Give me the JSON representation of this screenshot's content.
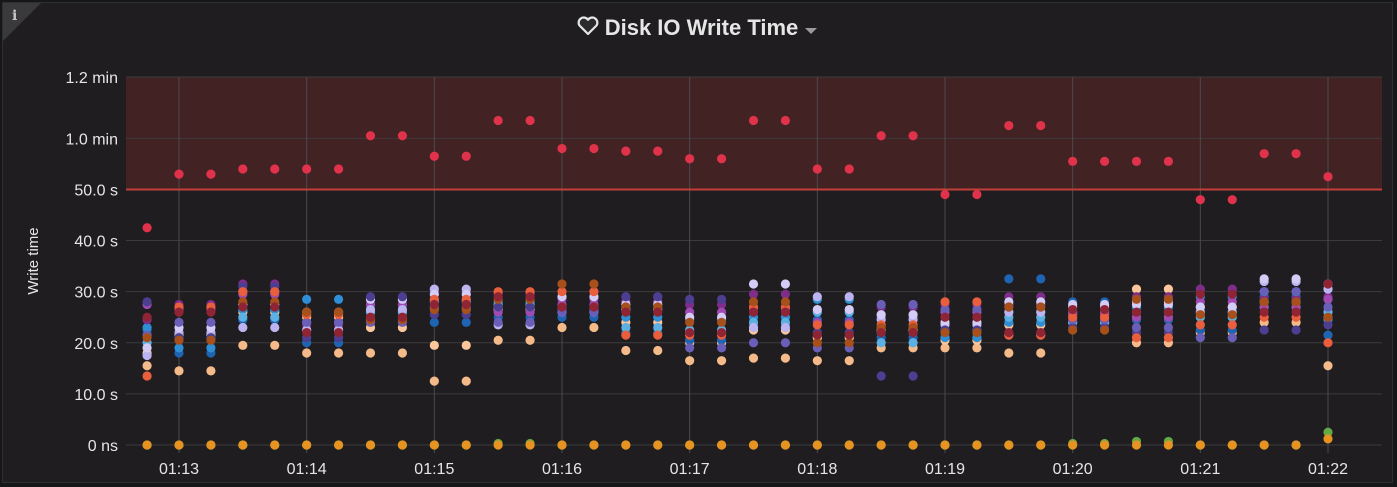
{
  "panel": {
    "title": "Disk IO Write Time",
    "info_icon": "i",
    "title_icon": "heart-icon",
    "menu_icon": "caret-down-icon"
  },
  "chart_data": {
    "type": "scatter",
    "title": "Disk IO Write Time",
    "ylabel": "Write time",
    "xlabel": "",
    "ylim": [
      0,
      72
    ],
    "y_ticks": [
      {
        "value": 0,
        "label": "0 ns"
      },
      {
        "value": 10,
        "label": "10.0 s"
      },
      {
        "value": 20,
        "label": "20.0 s"
      },
      {
        "value": 30,
        "label": "30.0 s"
      },
      {
        "value": 40,
        "label": "40.0 s"
      },
      {
        "value": 50,
        "label": "50.0 s"
      },
      {
        "value": 60,
        "label": "1.0 min"
      },
      {
        "value": 72,
        "label": "1.2 min"
      }
    ],
    "x_ticks": [
      "01:13",
      "01:14",
      "01:15",
      "01:16",
      "01:17",
      "01:18",
      "01:19",
      "01:20",
      "01:21",
      "01:22"
    ],
    "x": [
      "01:12:45",
      "01:13:00",
      "01:13:15",
      "01:13:30",
      "01:13:45",
      "01:14:00",
      "01:14:15",
      "01:14:30",
      "01:14:45",
      "01:15:00",
      "01:15:15",
      "01:15:30",
      "01:15:45",
      "01:16:00",
      "01:16:15",
      "01:16:30",
      "01:16:45",
      "01:17:00",
      "01:17:15",
      "01:17:30",
      "01:17:45",
      "01:18:00",
      "01:18:15",
      "01:18:30",
      "01:18:45",
      "01:19:00",
      "01:19:15",
      "01:19:30",
      "01:19:45",
      "01:20:00",
      "01:20:15",
      "01:20:30",
      "01:20:45",
      "01:21:00",
      "01:21:15",
      "01:21:30",
      "01:21:45",
      "01:22:00"
    ],
    "threshold": {
      "value": 50,
      "color": "#c23f3a",
      "fill": "rgba(160,50,50,0.28)"
    },
    "grid": true,
    "series": [
      {
        "color": "#e0334b",
        "values": [
          42.5,
          53,
          53,
          54,
          54,
          54,
          54,
          60.5,
          60.5,
          56.5,
          56.5,
          63.5,
          63.5,
          58,
          58,
          57.5,
          57.5,
          56,
          56,
          63.5,
          63.5,
          54,
          54,
          60.5,
          60.5,
          49,
          49,
          62.5,
          62.5,
          55.5,
          55.5,
          55.5,
          55.5,
          48,
          48,
          57,
          57,
          52.5
        ]
      },
      {
        "color": "#f5ba89",
        "values": [
          15.5,
          14.5,
          14.5,
          19.5,
          19.5,
          18,
          18,
          18,
          18,
          12.5,
          12.5,
          20.5,
          20.5,
          23,
          23,
          18.5,
          18.5,
          16.5,
          16.5,
          17,
          17,
          16.5,
          16.5,
          19,
          19,
          19,
          19,
          18,
          18,
          24,
          24,
          20,
          20,
          22,
          22,
          24,
          24,
          15.5
        ]
      },
      {
        "color": "#fbc69b",
        "values": [
          18,
          21.5,
          21.5,
          26,
          26,
          25,
          25,
          23,
          23,
          19.5,
          19.5,
          26.5,
          26.5,
          26.5,
          26.5,
          24,
          24,
          20,
          20,
          22.5,
          22.5,
          21,
          21,
          22.5,
          22.5,
          20.5,
          20.5,
          23.5,
          23.5,
          25.5,
          25.5,
          30.5,
          30.5,
          27,
          27,
          28,
          28,
          25
        ]
      },
      {
        "color": "#1f64b3",
        "values": [
          22.5,
          18,
          18,
          24.5,
          24.5,
          20,
          20,
          26,
          26,
          24,
          24,
          25,
          25,
          25,
          25,
          22,
          22,
          20.5,
          20.5,
          23.5,
          23.5,
          24.5,
          24.5,
          21,
          21,
          22,
          22,
          32.5,
          32.5,
          28,
          28,
          24.5,
          24.5,
          22.5,
          22.5,
          29,
          29,
          21.5
        ]
      },
      {
        "color": "#2e8fd6",
        "values": [
          23,
          19,
          19,
          26.5,
          26.5,
          28.5,
          28.5,
          27.5,
          27.5,
          27,
          27,
          28,
          28,
          28.5,
          28.5,
          25,
          25,
          24.5,
          24.5,
          25,
          25,
          28.5,
          28.5,
          22,
          22,
          21,
          21,
          24,
          24,
          26,
          26,
          27,
          27,
          29,
          29,
          30,
          30,
          24.5
        ]
      },
      {
        "color": "#5db1e2",
        "values": [
          20,
          21,
          21,
          25,
          25,
          24,
          24,
          26,
          26,
          28,
          28,
          27.5,
          27.5,
          27,
          27,
          23,
          23,
          22.5,
          22.5,
          24,
          24,
          26,
          26,
          20,
          20,
          22.5,
          22.5,
          25,
          25,
          24,
          24,
          26,
          26,
          25,
          25,
          27,
          27,
          26
        ]
      },
      {
        "color": "#7f2d8a",
        "values": [
          24.5,
          27.5,
          27.5,
          31.5,
          31.5,
          23.5,
          23.5,
          28.5,
          28.5,
          30,
          30,
          29.5,
          29.5,
          28.5,
          28.5,
          29,
          29,
          27.5,
          27.5,
          29.5,
          29.5,
          26.5,
          26.5,
          27,
          27,
          27.5,
          27.5,
          29,
          29,
          25.5,
          25.5,
          29,
          29,
          30.5,
          30.5,
          28.5,
          28.5,
          29
        ]
      },
      {
        "color": "#a04ab2",
        "values": [
          27.5,
          26.5,
          26.5,
          29.5,
          29.5,
          22.5,
          22.5,
          27.5,
          27.5,
          28.5,
          28.5,
          26,
          26,
          27.5,
          27.5,
          28,
          28,
          26,
          26,
          27,
          27,
          24,
          24,
          25,
          25,
          26,
          26,
          27.5,
          27.5,
          26,
          26,
          25,
          25,
          28,
          28,
          27,
          27,
          28.5
        ]
      },
      {
        "color": "#bcb4f0",
        "values": [
          17.5,
          22,
          22,
          23,
          23,
          22.5,
          22.5,
          26.5,
          26.5,
          30.5,
          30.5,
          23.5,
          23.5,
          26,
          26,
          26.5,
          26.5,
          22,
          22,
          23,
          23,
          29,
          29,
          24.5,
          24.5,
          23.5,
          23.5,
          26,
          26,
          27,
          27,
          28,
          28,
          26,
          26,
          32,
          32,
          30.5
        ]
      },
      {
        "color": "#d3ccf7",
        "values": [
          19,
          23,
          23,
          27.5,
          27.5,
          26,
          26,
          28.5,
          28.5,
          29.5,
          29.5,
          27,
          27,
          29,
          29,
          27.5,
          27.5,
          25,
          25,
          31.5,
          31.5,
          26.5,
          26.5,
          25.5,
          25.5,
          24,
          24,
          28,
          28,
          27.5,
          27.5,
          27.5,
          27.5,
          27,
          27,
          32.5,
          32.5,
          31.5
        ]
      },
      {
        "color": "#4c3f92",
        "values": [
          28,
          21,
          21,
          31,
          31,
          21,
          21,
          29,
          29,
          25.5,
          25.5,
          27,
          27,
          26.5,
          26.5,
          29,
          29,
          28.5,
          28.5,
          26.5,
          26.5,
          22,
          22,
          13.5,
          13.5,
          22.5,
          22.5,
          27,
          27,
          23,
          23,
          22,
          22,
          23.5,
          23.5,
          22.5,
          22.5,
          23.5
        ]
      },
      {
        "color": "#6a5fb8",
        "values": [
          21.5,
          24,
          24,
          30,
          30,
          24,
          24,
          24,
          24,
          26.5,
          26.5,
          24,
          24,
          26,
          26,
          27,
          27,
          19,
          19,
          20,
          20,
          19,
          19,
          27.5,
          27.5,
          26.5,
          26.5,
          21.5,
          21.5,
          24.5,
          24.5,
          23,
          23,
          21,
          21,
          30,
          30,
          27
        ]
      },
      {
        "color": "#e95f3d",
        "values": [
          13.5,
          27,
          27,
          30,
          30,
          25.5,
          25.5,
          25,
          25,
          28.5,
          28.5,
          30,
          30,
          30,
          30,
          21.5,
          21.5,
          21.5,
          21.5,
          27,
          27,
          23.5,
          23.5,
          23.5,
          23.5,
          28,
          28,
          21.5,
          21.5,
          25,
          25,
          21,
          21,
          23.5,
          23.5,
          25,
          25,
          20
        ]
      },
      {
        "color": "#a8501c",
        "values": [
          21,
          20.5,
          20.5,
          28,
          28,
          26,
          26,
          24.5,
          24.5,
          26.5,
          26.5,
          28.5,
          28.5,
          31.5,
          31.5,
          27,
          27,
          24,
          24,
          28,
          28,
          20,
          20,
          23,
          23,
          22,
          22,
          27,
          27,
          22.5,
          22.5,
          28.5,
          28.5,
          25.5,
          25.5,
          28,
          28,
          25
        ]
      },
      {
        "color": "#8f2435",
        "values": [
          25,
          26,
          26,
          27,
          27,
          22,
          22,
          25,
          25,
          27.5,
          27.5,
          29,
          29,
          27,
          27,
          26,
          26,
          22,
          22,
          26,
          26,
          21.5,
          21.5,
          22,
          22,
          25,
          25,
          22,
          22,
          26.5,
          26.5,
          26,
          26,
          29.5,
          29.5,
          26,
          26,
          31.5
        ]
      },
      {
        "color": "#62aa46",
        "values": [
          0,
          0,
          0,
          0,
          0,
          0,
          0,
          0,
          0,
          0,
          0,
          0.3,
          0.3,
          0,
          0,
          0,
          0,
          0,
          0,
          0,
          0,
          0,
          0,
          0,
          0,
          0,
          0,
          0,
          0,
          0.3,
          0.3,
          0.7,
          0.7,
          0,
          0,
          0,
          0,
          2.5
        ]
      },
      {
        "color": "#e69322",
        "values": [
          0,
          0,
          0,
          0,
          0,
          0,
          0,
          0,
          0,
          0,
          0,
          0,
          0,
          0,
          0,
          0,
          0,
          0,
          0,
          0,
          0,
          0,
          0,
          0,
          0,
          0,
          0,
          0,
          0,
          0,
          0,
          0,
          0,
          0,
          0,
          0,
          0,
          1.2
        ]
      }
    ]
  }
}
